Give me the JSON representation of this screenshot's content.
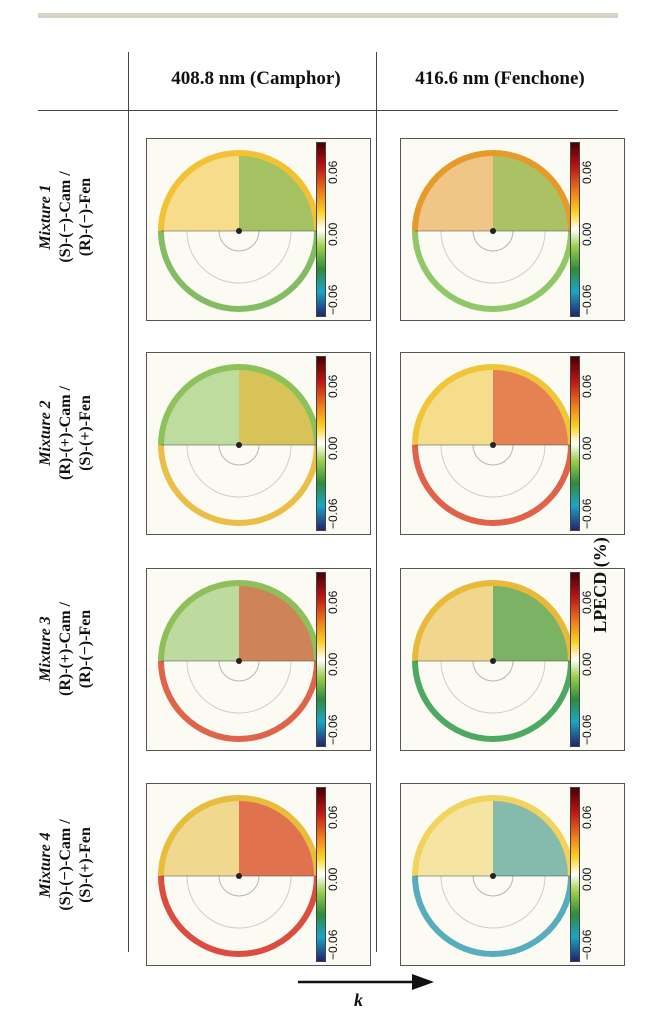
{
  "header": {
    "col1": "408.8 nm (Camphor)",
    "col2": "416.6 nm (Fenchone)"
  },
  "rows": [
    {
      "mixture": "Mixture 1",
      "line1": "(S)-(−)-Cam /",
      "line2": "(R)-(−)-Fen"
    },
    {
      "mixture": "Mixture 2",
      "line1": "(R)-(+)-Cam /",
      "line2": "(S)-(+)-Fen"
    },
    {
      "mixture": "Mixture 3",
      "line1": "(R)-(+)-Cam /",
      "line2": "(R)-(−)-Fen"
    },
    {
      "mixture": "Mixture 4",
      "line1": "(S)-(−)-Cam /",
      "line2": "(S)-(+)-Fen"
    }
  ],
  "colorbar": {
    "ticks": [
      "0.06",
      "0.00",
      "−0.06"
    ],
    "gradient_colors": [
      "#4a0000",
      "#c01414",
      "#f07a1a",
      "#fbd21e",
      "#ffffff",
      "#9ccf48",
      "#2e8c3a",
      "#18a6c8",
      "#222270"
    ]
  },
  "colorbar_label": "LPECD (%)",
  "axis_vector": "k⃗",
  "panel_colors": [
    [
      "#f2c234",
      "#6fb04a",
      "#e59a2a",
      "#7cbe4f"
    ],
    [
      "#8cc258",
      "#e8b328",
      "#f0c537",
      "#d9462a"
    ],
    [
      "#8ebf5a",
      "#d84a2c",
      "#e9b93a",
      "#2e9a48"
    ],
    [
      "#e7bd3b",
      "#d52e21",
      "#f2d35e",
      "#3a9fb4"
    ]
  ]
}
